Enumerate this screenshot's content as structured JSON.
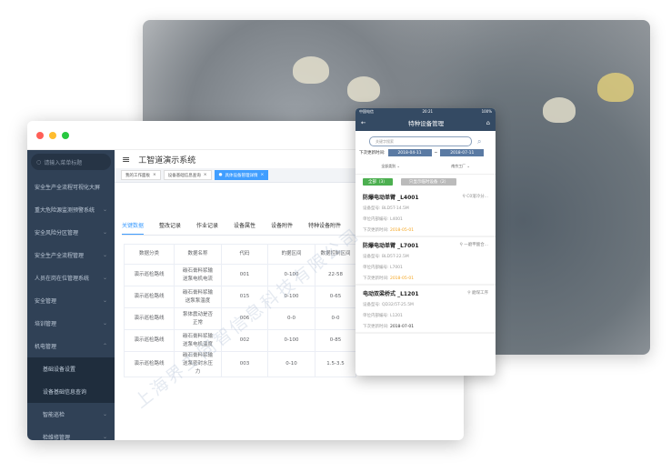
{
  "desktop": {
    "title": "工智道演示系统",
    "search_placeholder": "请输入菜单标题",
    "menu": [
      {
        "label": "安全生产全流程可视化大屏",
        "chevron": false
      },
      {
        "label": "重大危险源监测预警系统",
        "chevron": true
      },
      {
        "label": "安全风险分区管理",
        "chevron": true
      },
      {
        "label": "安全生产全流程管理",
        "chevron": true
      },
      {
        "label": "人员在岗在位管理系统",
        "chevron": true
      },
      {
        "label": "安全管理",
        "chevron": true
      },
      {
        "label": "培训管理",
        "chevron": true
      },
      {
        "label": "机电管理",
        "chevron": true,
        "expanded": true
      },
      {
        "label": "基础设备设置"
      },
      {
        "label": "设备基础信息查询"
      },
      {
        "label": "智能巡检",
        "chevron": true
      },
      {
        "label": "检维修管理",
        "chevron": true
      }
    ],
    "open_tags": [
      "我的工作面板",
      "设备基础信息查询",
      "具体设备管理详情"
    ],
    "tabs": [
      "关键数据",
      "整改记录",
      "作业记录",
      "设备属性",
      "设备附件",
      "特种设备附件"
    ],
    "table": {
      "headers": [
        "数据分类",
        "数据名称",
        "代码",
        "的据区间",
        "数据控制区间"
      ],
      "rows": [
        [
          "演示巡检路线",
          "碳石膏料浆输送泵电机电流",
          "001",
          "0-100",
          "22-58"
        ],
        [
          "演示巡检路线",
          "碳石膏料浆输送泵泵温度",
          "015",
          "0-100",
          "0-65"
        ],
        [
          "演示巡检路线",
          "泵体震动是否正常",
          "006",
          "0-0",
          "0-0"
        ],
        [
          "演示巡检路线",
          "碳石膏料浆输送泵电机温度",
          "002",
          "0-100",
          "0-85"
        ],
        [
          "演示巡检路线",
          "碳石膏料浆输送泵密封水压力",
          "003",
          "0-10",
          "1.5-3.5"
        ]
      ]
    }
  },
  "mobile": {
    "carrier": "中国电信",
    "time": "20:21",
    "battery": "100%",
    "title": "特种设备管理",
    "search_placeholder": "关键字搜索",
    "date_label": "下次更新时间:",
    "date_from": "2018-04-11",
    "date_sep": "~",
    "date_to": "2018-07-11",
    "filter_category": "全部类别",
    "filter_factory": "南京工厂",
    "btn_all": "全部（3）",
    "btn_overdue": "只显示临时设备（2）",
    "cards": [
      {
        "name": "防爆电动单臂 _L4001",
        "location": "C0溶冷分...",
        "model_label": "设备型号:",
        "model": "BLD5T-14.5M",
        "code_label": "单位内部编号:",
        "code": "L4001",
        "next_label": "下次更新时间:",
        "next": "2018-05-01",
        "highlight": true
      },
      {
        "name": "防爆电动单臂 _L7001",
        "location": "一磨甲酸合...",
        "model_label": "设备型号:",
        "model": "BLD5T-22.5M",
        "code_label": "单位内部编号:",
        "code": "L7001",
        "next_label": "下次更新时间:",
        "next": "2018-05-01",
        "highlight": true
      },
      {
        "name": "电动双梁桥式 _L1201",
        "location": "磨煤工序",
        "model_label": "设备型号:",
        "model": "QD32/5T-25.5M",
        "code_label": "单位内部编号:",
        "code": "L1201",
        "next_label": "下次更新时间:",
        "next": "2018-07-01",
        "highlight": false
      }
    ]
  },
  "watermark": "上海界工同智信息科技有限公司",
  "colors": {
    "sidebar": "#304156",
    "accent": "#409eff",
    "mobile_header": "#344a63",
    "warn": "#f5a623",
    "green": "#4caf50"
  }
}
